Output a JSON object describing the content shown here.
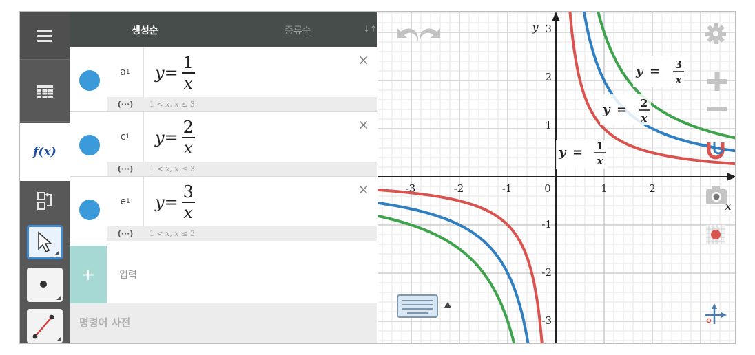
{
  "panel": {
    "tab_order": "생성순",
    "tab_type": "종류순",
    "sort_icon": "↓↑"
  },
  "objects": [
    {
      "name": "a",
      "subscript": "1",
      "y_var": "y",
      "eq": "=",
      "numerator": "1",
      "denominator": "x",
      "condition": "1 < 𝑥, 𝑥 ≤ 3",
      "color": "#d9534f"
    },
    {
      "name": "c",
      "subscript": "1",
      "y_var": "y",
      "eq": "=",
      "numerator": "2",
      "denominator": "x",
      "condition": "1 < 𝑥, 𝑥 ≤ 3",
      "color": "#2f7fc1"
    },
    {
      "name": "e",
      "subscript": "1",
      "y_var": "y",
      "eq": "=",
      "numerator": "3",
      "denominator": "x",
      "condition": "1 < 𝑥, 𝑥 ≤ 3",
      "color": "#3fa34d"
    }
  ],
  "row_extra": {
    "dots": "(···)",
    "close": "×"
  },
  "input": {
    "plus": "+",
    "label": "입력"
  },
  "command_bar": {
    "label": "명령어 사전"
  },
  "toolbar": {
    "fx_label": "f(x)"
  },
  "graph": {
    "x_axis_label": "x",
    "y_axis_label": "y",
    "x_ticks": [
      "-3",
      "-2",
      "-1",
      "0",
      "1",
      "2"
    ],
    "y_ticks": [
      "3",
      "2",
      "1",
      "-1",
      "-2",
      "-3"
    ],
    "curve_labels": [
      {
        "text_y": "y",
        "eq": "=",
        "num": "1",
        "den": "x"
      },
      {
        "text_y": "y",
        "eq": "=",
        "num": "2",
        "den": "x"
      },
      {
        "text_y": "y",
        "eq": "=",
        "num": "3",
        "den": "x"
      }
    ]
  },
  "chart_data": {
    "type": "line",
    "title": "",
    "xlabel": "x",
    "ylabel": "y",
    "xlim": [
      -3.5,
      3.9
    ],
    "ylim": [
      -3.5,
      3.2
    ],
    "grid": true,
    "series": [
      {
        "name": "y = 1/x",
        "k": 1,
        "color": "#d9534f"
      },
      {
        "name": "y = 2/x",
        "k": 2,
        "color": "#2f7fc1"
      },
      {
        "name": "y = 3/x",
        "k": 3,
        "color": "#3fa34d"
      }
    ]
  }
}
